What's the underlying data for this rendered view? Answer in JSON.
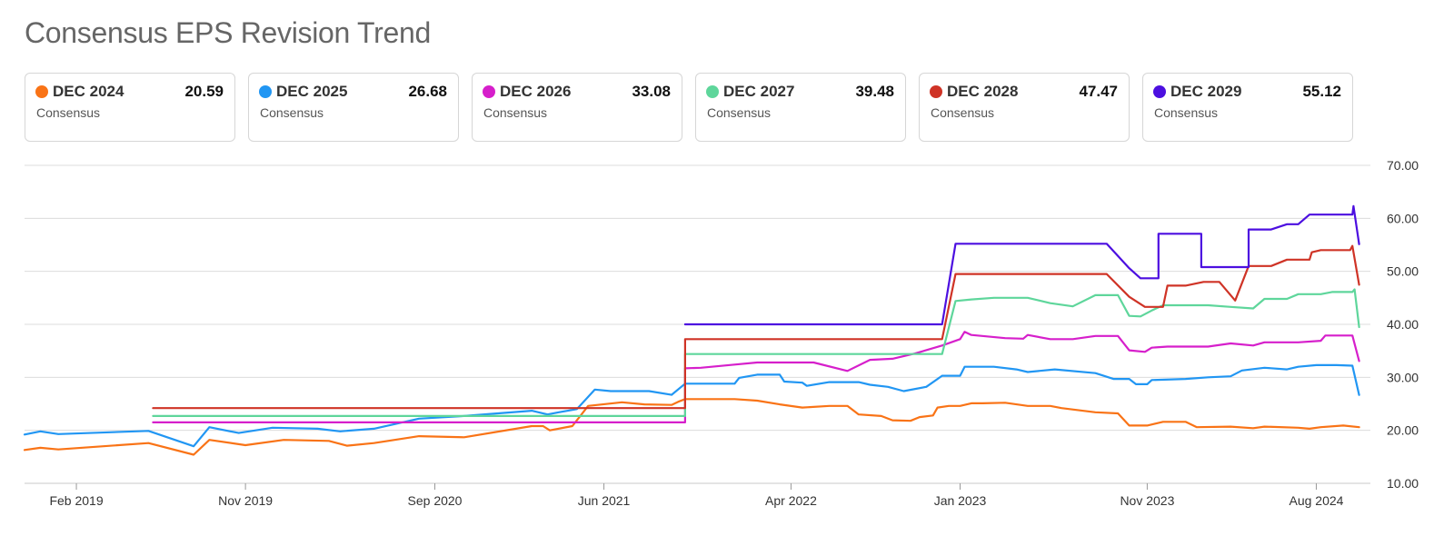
{
  "chart_data": {
    "type": "line",
    "title": "Consensus EPS Revision Trend",
    "xlabel": "",
    "ylabel": "",
    "ylim": [
      10,
      70
    ],
    "yticks": [
      "70.00",
      "60.00",
      "50.00",
      "40.00",
      "30.00",
      "20.00",
      "10.00"
    ],
    "ytick_values": [
      70,
      60,
      50,
      40,
      30,
      20,
      10
    ],
    "xlim": [
      2018.85,
      2024.82
    ],
    "xticks": [
      {
        "label": "Feb 2019",
        "t": 2019.08
      },
      {
        "label": "Nov 2019",
        "t": 2019.83
      },
      {
        "label": "Sep 2020",
        "t": 2020.67
      },
      {
        "label": "Jun 2021",
        "t": 2021.42
      },
      {
        "label": "Apr 2022",
        "t": 2022.25
      },
      {
        "label": "Jan 2023",
        "t": 2023.0
      },
      {
        "label": "Nov 2023",
        "t": 2023.83
      },
      {
        "label": "Aug 2024",
        "t": 2024.58
      }
    ],
    "series": [
      {
        "name": "DEC 2024",
        "sublabel": "Consensus",
        "value_label": "20.59",
        "color": "#f97316",
        "points": [
          [
            2018.85,
            16.3
          ],
          [
            2018.92,
            16.7
          ],
          [
            2019.0,
            16.4
          ],
          [
            2019.4,
            17.6
          ],
          [
            2019.6,
            15.4
          ],
          [
            2019.67,
            18.2
          ],
          [
            2019.83,
            17.2
          ],
          [
            2020.0,
            18.2
          ],
          [
            2020.2,
            18.0
          ],
          [
            2020.28,
            17.1
          ],
          [
            2020.4,
            17.6
          ],
          [
            2020.6,
            18.9
          ],
          [
            2020.8,
            18.7
          ],
          [
            2021.1,
            20.8
          ],
          [
            2021.15,
            20.8
          ],
          [
            2021.18,
            20.0
          ],
          [
            2021.28,
            20.8
          ],
          [
            2021.35,
            24.6
          ],
          [
            2021.5,
            25.3
          ],
          [
            2021.6,
            24.9
          ],
          [
            2021.72,
            24.8
          ],
          [
            2021.75,
            25.4
          ],
          [
            2021.78,
            25.9
          ],
          [
            2022.0,
            25.9
          ],
          [
            2022.1,
            25.6
          ],
          [
            2022.2,
            24.9
          ],
          [
            2022.3,
            24.3
          ],
          [
            2022.42,
            24.6
          ],
          [
            2022.5,
            24.6
          ],
          [
            2022.55,
            23.0
          ],
          [
            2022.65,
            22.7
          ],
          [
            2022.7,
            21.9
          ],
          [
            2022.78,
            21.8
          ],
          [
            2022.82,
            22.5
          ],
          [
            2022.88,
            22.8
          ],
          [
            2022.9,
            24.3
          ],
          [
            2022.95,
            24.6
          ],
          [
            2023.0,
            24.6
          ],
          [
            2023.05,
            25.1
          ],
          [
            2023.1,
            25.1
          ],
          [
            2023.2,
            25.2
          ],
          [
            2023.3,
            24.6
          ],
          [
            2023.4,
            24.6
          ],
          [
            2023.45,
            24.2
          ],
          [
            2023.6,
            23.4
          ],
          [
            2023.7,
            23.2
          ],
          [
            2023.75,
            20.9
          ],
          [
            2023.83,
            20.9
          ],
          [
            2023.9,
            21.6
          ],
          [
            2024.0,
            21.6
          ],
          [
            2024.05,
            20.6
          ],
          [
            2024.2,
            20.7
          ],
          [
            2024.3,
            20.4
          ],
          [
            2024.35,
            20.7
          ],
          [
            2024.5,
            20.5
          ],
          [
            2024.55,
            20.3
          ],
          [
            2024.6,
            20.6
          ],
          [
            2024.7,
            20.9
          ],
          [
            2024.77,
            20.59
          ]
        ]
      },
      {
        "name": "DEC 2025",
        "sublabel": "Consensus",
        "value_label": "26.68",
        "color": "#2196f3",
        "points": [
          [
            2018.85,
            19.2
          ],
          [
            2018.92,
            19.8
          ],
          [
            2019.0,
            19.3
          ],
          [
            2019.4,
            19.9
          ],
          [
            2019.6,
            17.0
          ],
          [
            2019.67,
            20.6
          ],
          [
            2019.8,
            19.5
          ],
          [
            2019.95,
            20.5
          ],
          [
            2020.15,
            20.3
          ],
          [
            2020.25,
            19.8
          ],
          [
            2020.4,
            20.3
          ],
          [
            2020.6,
            22.2
          ],
          [
            2020.8,
            22.7
          ],
          [
            2021.1,
            23.7
          ],
          [
            2021.17,
            23.0
          ],
          [
            2021.22,
            23.4
          ],
          [
            2021.3,
            24.0
          ],
          [
            2021.38,
            27.7
          ],
          [
            2021.45,
            27.4
          ],
          [
            2021.62,
            27.4
          ],
          [
            2021.72,
            26.7
          ],
          [
            2021.78,
            28.8
          ],
          [
            2022.0,
            28.8
          ],
          [
            2022.02,
            29.9
          ],
          [
            2022.1,
            30.5
          ],
          [
            2022.2,
            30.5
          ],
          [
            2022.22,
            29.2
          ],
          [
            2022.3,
            29.0
          ],
          [
            2022.32,
            28.4
          ],
          [
            2022.42,
            29.1
          ],
          [
            2022.55,
            29.1
          ],
          [
            2022.6,
            28.6
          ],
          [
            2022.68,
            28.2
          ],
          [
            2022.75,
            27.4
          ],
          [
            2022.85,
            28.2
          ],
          [
            2022.92,
            30.3
          ],
          [
            2023.0,
            30.3
          ],
          [
            2023.02,
            32.0
          ],
          [
            2023.15,
            32.0
          ],
          [
            2023.25,
            31.5
          ],
          [
            2023.3,
            31.0
          ],
          [
            2023.42,
            31.5
          ],
          [
            2023.6,
            30.8
          ],
          [
            2023.68,
            29.7
          ],
          [
            2023.75,
            29.7
          ],
          [
            2023.78,
            28.7
          ],
          [
            2023.83,
            28.7
          ],
          [
            2023.85,
            29.5
          ],
          [
            2024.0,
            29.7
          ],
          [
            2024.1,
            30.0
          ],
          [
            2024.2,
            30.2
          ],
          [
            2024.25,
            31.3
          ],
          [
            2024.35,
            31.8
          ],
          [
            2024.45,
            31.5
          ],
          [
            2024.5,
            32.0
          ],
          [
            2024.58,
            32.3
          ],
          [
            2024.67,
            32.3
          ],
          [
            2024.74,
            32.2
          ],
          [
            2024.77,
            26.68
          ]
        ]
      },
      {
        "name": "DEC 2026",
        "sublabel": "Consensus",
        "value_label": "33.08",
        "color": "#d61fcb",
        "points": [
          [
            2019.42,
            21.5
          ],
          [
            2021.78,
            21.5
          ],
          [
            2021.78,
            31.7
          ],
          [
            2021.85,
            31.8
          ],
          [
            2022.0,
            32.4
          ],
          [
            2022.1,
            32.8
          ],
          [
            2022.35,
            32.8
          ],
          [
            2022.5,
            31.2
          ],
          [
            2022.6,
            33.3
          ],
          [
            2022.7,
            33.5
          ],
          [
            2022.8,
            34.5
          ],
          [
            2022.92,
            36.0
          ],
          [
            2023.0,
            37.2
          ],
          [
            2023.02,
            38.6
          ],
          [
            2023.05,
            38.0
          ],
          [
            2023.2,
            37.4
          ],
          [
            2023.28,
            37.3
          ],
          [
            2023.3,
            38.0
          ],
          [
            2023.4,
            37.2
          ],
          [
            2023.5,
            37.2
          ],
          [
            2023.6,
            37.8
          ],
          [
            2023.7,
            37.8
          ],
          [
            2023.75,
            35.1
          ],
          [
            2023.82,
            34.8
          ],
          [
            2023.85,
            35.6
          ],
          [
            2023.92,
            35.8
          ],
          [
            2024.1,
            35.8
          ],
          [
            2024.2,
            36.4
          ],
          [
            2024.3,
            36.0
          ],
          [
            2024.35,
            36.6
          ],
          [
            2024.5,
            36.6
          ],
          [
            2024.6,
            36.9
          ],
          [
            2024.62,
            37.9
          ],
          [
            2024.72,
            37.9
          ],
          [
            2024.74,
            37.9
          ],
          [
            2024.77,
            33.08
          ]
        ]
      },
      {
        "name": "DEC 2027",
        "sublabel": "Consensus",
        "value_label": "39.48",
        "color": "#5ed69b",
        "points": [
          [
            2019.42,
            22.7
          ],
          [
            2021.78,
            22.7
          ],
          [
            2021.78,
            34.4
          ],
          [
            2022.92,
            34.4
          ],
          [
            2022.98,
            44.4
          ],
          [
            2023.05,
            44.7
          ],
          [
            2023.15,
            45.0
          ],
          [
            2023.3,
            45.0
          ],
          [
            2023.4,
            44.0
          ],
          [
            2023.5,
            43.4
          ],
          [
            2023.6,
            45.5
          ],
          [
            2023.7,
            45.5
          ],
          [
            2023.75,
            41.6
          ],
          [
            2023.8,
            41.5
          ],
          [
            2023.85,
            42.6
          ],
          [
            2023.9,
            43.6
          ],
          [
            2024.1,
            43.6
          ],
          [
            2024.2,
            43.3
          ],
          [
            2024.3,
            43.0
          ],
          [
            2024.35,
            44.8
          ],
          [
            2024.45,
            44.8
          ],
          [
            2024.5,
            45.7
          ],
          [
            2024.6,
            45.7
          ],
          [
            2024.65,
            46.1
          ],
          [
            2024.74,
            46.1
          ],
          [
            2024.75,
            46.6
          ],
          [
            2024.77,
            39.48
          ]
        ]
      },
      {
        "name": "DEC 2028",
        "sublabel": "Consensus",
        "value_label": "47.47",
        "color": "#cf3326",
        "points": [
          [
            2019.42,
            24.2
          ],
          [
            2021.78,
            24.2
          ],
          [
            2021.78,
            37.2
          ],
          [
            2022.92,
            37.2
          ],
          [
            2022.98,
            49.5
          ],
          [
            2023.65,
            49.5
          ],
          [
            2023.75,
            45.2
          ],
          [
            2023.82,
            43.3
          ],
          [
            2023.9,
            43.3
          ],
          [
            2023.92,
            47.3
          ],
          [
            2024.0,
            47.3
          ],
          [
            2024.08,
            48.0
          ],
          [
            2024.15,
            48.0
          ],
          [
            2024.22,
            44.5
          ],
          [
            2024.28,
            51.0
          ],
          [
            2024.38,
            51.0
          ],
          [
            2024.45,
            52.2
          ],
          [
            2024.55,
            52.2
          ],
          [
            2024.56,
            53.6
          ],
          [
            2024.6,
            54.0
          ],
          [
            2024.73,
            54.0
          ],
          [
            2024.74,
            54.8
          ],
          [
            2024.77,
            47.47
          ]
        ]
      },
      {
        "name": "DEC 2029",
        "sublabel": "Consensus",
        "value_label": "55.12",
        "color": "#4c0fe0",
        "points": [
          [
            2021.78,
            40.0
          ],
          [
            2022.92,
            40.0
          ],
          [
            2022.98,
            55.2
          ],
          [
            2023.65,
            55.2
          ],
          [
            2023.75,
            50.6
          ],
          [
            2023.8,
            48.7
          ],
          [
            2023.88,
            48.7
          ],
          [
            2023.88,
            57.1
          ],
          [
            2024.07,
            57.1
          ],
          [
            2024.07,
            50.8
          ],
          [
            2024.28,
            50.8
          ],
          [
            2024.28,
            57.9
          ],
          [
            2024.38,
            57.9
          ],
          [
            2024.45,
            58.9
          ],
          [
            2024.5,
            58.9
          ],
          [
            2024.55,
            60.7
          ],
          [
            2024.74,
            60.7
          ],
          [
            2024.745,
            62.3
          ],
          [
            2024.77,
            55.12
          ]
        ]
      }
    ]
  }
}
